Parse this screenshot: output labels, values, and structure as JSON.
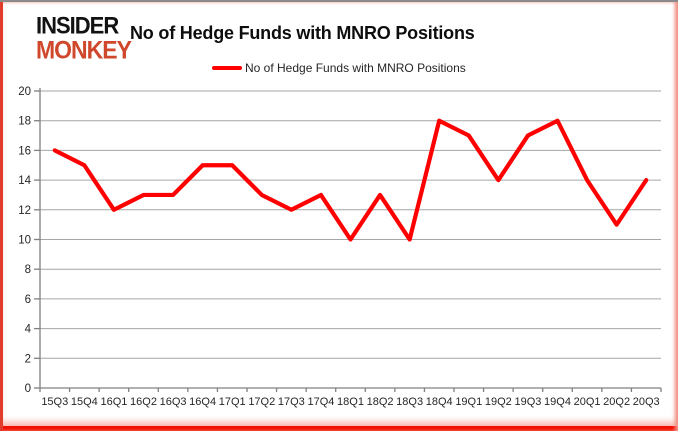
{
  "logo": {
    "line1": "INSIDER",
    "line2": "MONKEY",
    "color": "#d0482c"
  },
  "header": {
    "title": "No of Hedge Funds with MNRO Positions"
  },
  "legend": {
    "label": "No of Hedge Funds with MNRO Positions",
    "swatch_color": "#ff0000"
  },
  "chart_data": {
    "type": "line",
    "title": "No of Hedge Funds with MNRO Positions",
    "series": [
      {
        "name": "No of Hedge Funds with MNRO Positions",
        "values": [
          16,
          15,
          12,
          13,
          13,
          15,
          15,
          13,
          12,
          13,
          10,
          13,
          10,
          18,
          17,
          14,
          17,
          18,
          14,
          11,
          14
        ]
      }
    ],
    "categories": [
      "15Q3",
      "15Q4",
      "16Q1",
      "16Q2",
      "16Q3",
      "16Q4",
      "17Q1",
      "17Q2",
      "17Q3",
      "17Q4",
      "18Q1",
      "18Q2",
      "18Q3",
      "18Q4",
      "19Q1",
      "19Q2",
      "19Q3",
      "19Q4",
      "20Q1",
      "20Q2",
      "20Q3"
    ],
    "xlabel": "",
    "ylabel": "",
    "ylim": [
      0,
      20
    ],
    "yticks": [
      0,
      2,
      4,
      6,
      8,
      10,
      12,
      14,
      16,
      18,
      20
    ],
    "grid": true,
    "legend_position": "top",
    "line_color": "#ff0000",
    "gridline_color": "#a6a6a6",
    "axis_color": "#808080",
    "tick_label_color": "#262626"
  }
}
